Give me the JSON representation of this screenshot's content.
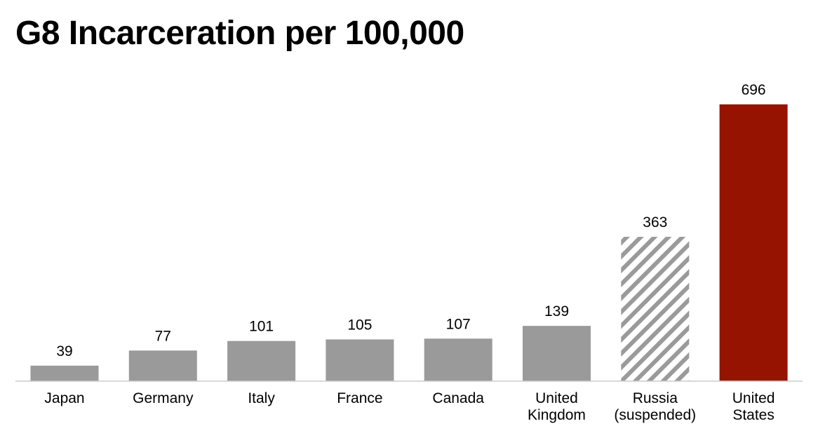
{
  "title": "G8 Incarceration per 100,000",
  "chart_data": {
    "type": "bar",
    "title": "G8 Incarceration per 100,000",
    "xlabel": "",
    "ylabel": "",
    "ylim": [
      0,
      700
    ],
    "grid": false,
    "legend": "none",
    "categories": [
      [
        "Japan"
      ],
      [
        "Germany"
      ],
      [
        "Italy"
      ],
      [
        "France"
      ],
      [
        "Canada"
      ],
      [
        "United",
        "Kingdom"
      ],
      [
        "Russia",
        "(suspended)"
      ],
      [
        "United",
        "States"
      ]
    ],
    "values": [
      39,
      77,
      101,
      105,
      107,
      139,
      363,
      696
    ],
    "bar_styles": [
      "solid",
      "solid",
      "solid",
      "solid",
      "solid",
      "solid",
      "hatched",
      "highlight"
    ],
    "colors": {
      "default": "#9a9a9a",
      "hatched": "#9a9a9a",
      "highlight": "#951300",
      "axis": "#cccccc"
    }
  }
}
